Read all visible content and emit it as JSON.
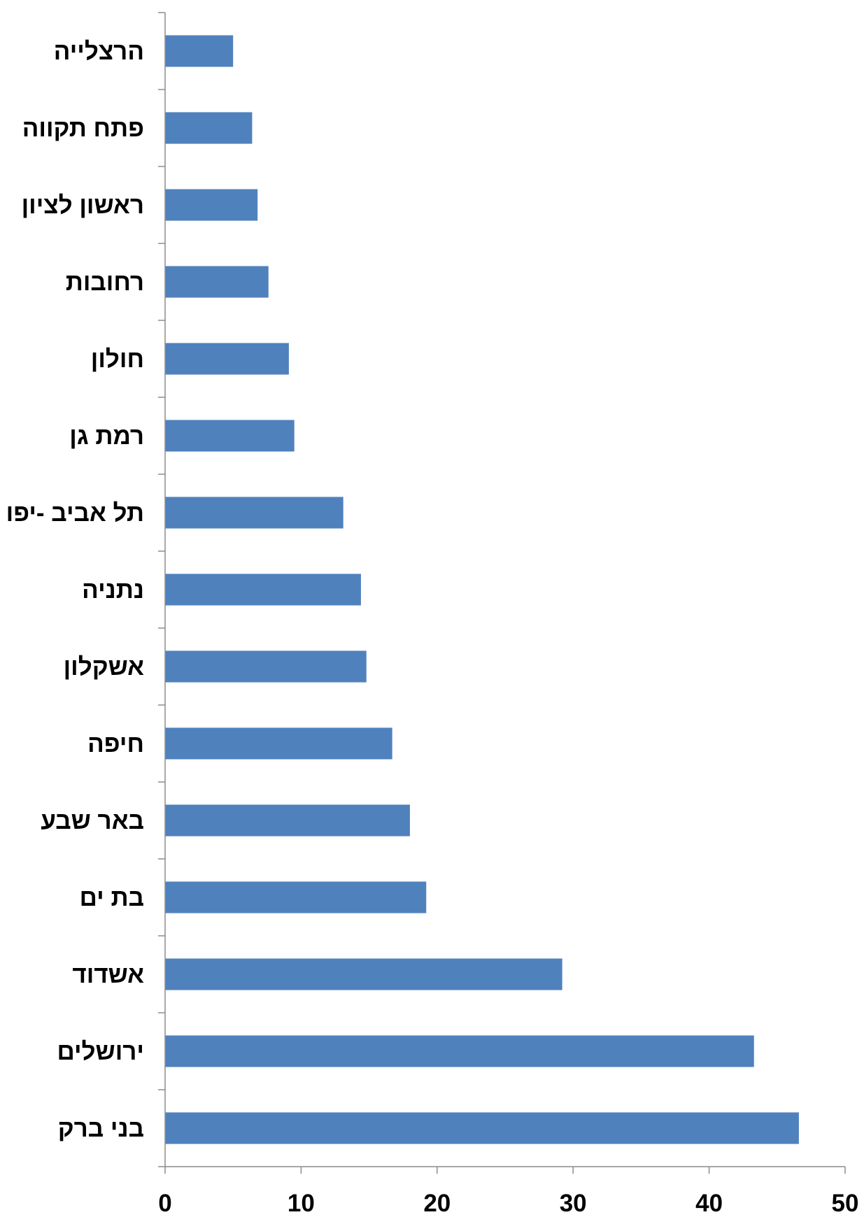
{
  "chart_data": {
    "type": "bar",
    "orientation": "horizontal",
    "categories": [
      "הרצלייה",
      "פתח תקווה",
      "ראשון לציון",
      "רחובות",
      "חולון",
      "רמת גן",
      "תל אביב -יפו",
      "נתניה",
      "אשקלון",
      "חיפה",
      "באר שבע",
      "בת ים",
      "אשדוד",
      "ירושלים",
      "בני ברק"
    ],
    "values": [
      5.0,
      6.4,
      6.8,
      7.6,
      9.1,
      9.5,
      13.1,
      14.4,
      14.8,
      16.7,
      18.0,
      19.2,
      29.2,
      43.3,
      46.6
    ],
    "xlim": [
      0,
      50
    ],
    "xticks": [
      "0",
      "10",
      "20",
      "30",
      "40",
      "50"
    ],
    "bar_color": "#4f81bd",
    "title": "",
    "xlabel": "",
    "ylabel": "",
    "grid": false,
    "legend": "none"
  }
}
